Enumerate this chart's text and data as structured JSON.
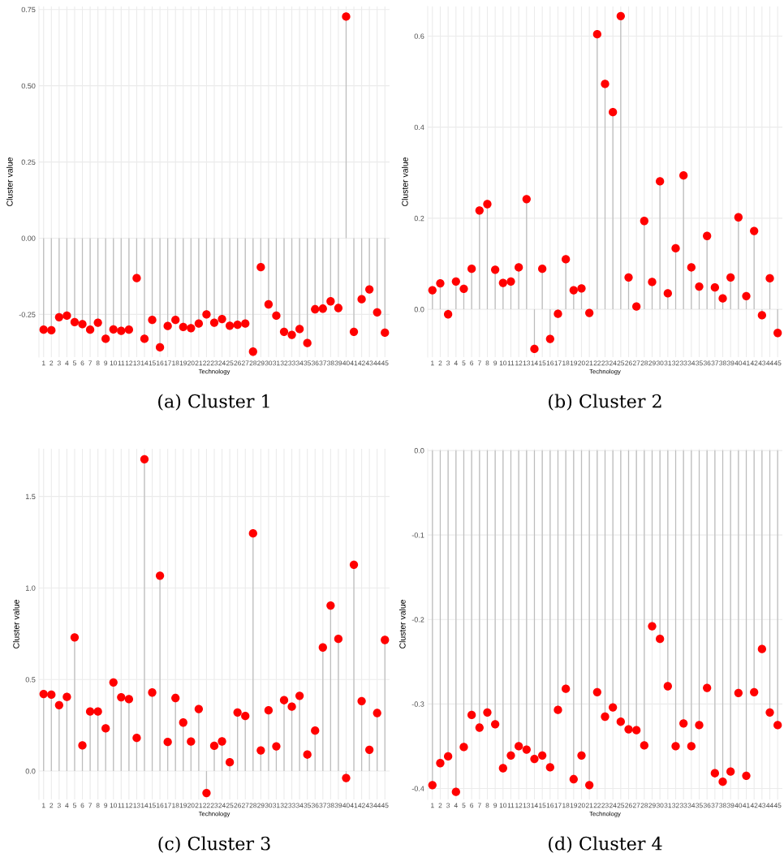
{
  "chart_data": [
    {
      "type": "lollipop",
      "xlabel": "Technology",
      "ylabel": "Cluster value",
      "annotations": [
        "(a) Cluster 1"
      ],
      "color": "#ff0000",
      "marker": "circle",
      "grid": true,
      "categories": [
        "1",
        "2",
        "3",
        "4",
        "5",
        "6",
        "7",
        "8",
        "9",
        "10",
        "11",
        "12",
        "13",
        "14",
        "15",
        "16",
        "17",
        "18",
        "19",
        "20",
        "21",
        "22",
        "23",
        "24",
        "25",
        "26",
        "27",
        "28",
        "29",
        "30",
        "31",
        "32",
        "33",
        "34",
        "35",
        "36",
        "37",
        "38",
        "39",
        "40",
        "41",
        "42",
        "43",
        "44",
        "45"
      ],
      "values": [
        -0.3,
        -0.302,
        -0.259,
        -0.254,
        -0.275,
        -0.282,
        -0.3,
        -0.277,
        -0.33,
        -0.299,
        -0.304,
        -0.3,
        -0.131,
        -0.33,
        -0.268,
        -0.358,
        -0.288,
        -0.268,
        -0.291,
        -0.295,
        -0.28,
        -0.25,
        -0.277,
        -0.265,
        -0.287,
        -0.284,
        -0.28,
        -0.372,
        -0.095,
        -0.217,
        -0.254,
        -0.307,
        -0.317,
        -0.298,
        -0.344,
        -0.233,
        -0.231,
        -0.207,
        -0.229,
        0.727,
        -0.307,
        -0.2,
        -0.168,
        -0.243,
        -0.31
      ],
      "ylim": [
        -0.39,
        0.76
      ],
      "yticks": [
        {
          "value": -0.25,
          "label": "-0.25"
        },
        {
          "value": 0,
          "label": "0.00"
        },
        {
          "value": 0.25,
          "label": "0.25"
        },
        {
          "value": 0.5,
          "label": "0.50"
        },
        {
          "value": 0.75,
          "label": "0.75"
        }
      ]
    },
    {
      "type": "lollipop",
      "xlabel": "Technology",
      "ylabel": "Cluster value",
      "annotations": [
        "(b) Cluster 2"
      ],
      "color": "#ff0000",
      "marker": "circle",
      "grid": true,
      "categories": [
        "1",
        "2",
        "3",
        "4",
        "5",
        "6",
        "7",
        "8",
        "9",
        "10",
        "11",
        "12",
        "13",
        "14",
        "15",
        "16",
        "17",
        "18",
        "19",
        "20",
        "21",
        "22",
        "23",
        "24",
        "25",
        "26",
        "27",
        "28",
        "29",
        "30",
        "31",
        "32",
        "33",
        "34",
        "35",
        "36",
        "37",
        "38",
        "39",
        "40",
        "41",
        "42",
        "43",
        "44",
        "45"
      ],
      "values": [
        0.042,
        0.057,
        -0.011,
        0.061,
        0.045,
        0.089,
        0.217,
        0.231,
        0.087,
        0.058,
        0.061,
        0.092,
        0.242,
        -0.087,
        0.089,
        -0.065,
        -0.01,
        0.11,
        0.042,
        0.046,
        -0.008,
        0.604,
        0.495,
        0.433,
        0.644,
        0.07,
        0.006,
        0.194,
        0.06,
        0.281,
        0.035,
        0.134,
        0.294,
        0.092,
        0.05,
        0.161,
        0.048,
        0.024,
        0.07,
        0.202,
        0.029,
        0.172,
        -0.013,
        0.068,
        -0.052
      ],
      "ylim": [
        -0.105,
        0.665
      ],
      "yticks": [
        {
          "value": 0,
          "label": "0.0"
        },
        0.2,
        0.4,
        0.6
      ]
    },
    {
      "type": "lollipop",
      "xlabel": "Technology",
      "ylabel": "Cluster value",
      "annotations": [
        "(c) Cluster 3"
      ],
      "color": "#ff0000",
      "marker": "circle",
      "grid": true,
      "categories": [
        "1",
        "2",
        "3",
        "4",
        "5",
        "6",
        "7",
        "8",
        "9",
        "10",
        "11",
        "12",
        "13",
        "14",
        "15",
        "16",
        "17",
        "18",
        "19",
        "20",
        "21",
        "22",
        "23",
        "24",
        "25",
        "26",
        "27",
        "28",
        "29",
        "30",
        "31",
        "32",
        "33",
        "34",
        "35",
        "36",
        "37",
        "38",
        "39",
        "40",
        "41",
        "42",
        "43",
        "44",
        "45"
      ],
      "values": [
        0.421,
        0.417,
        0.36,
        0.405,
        0.73,
        0.14,
        0.325,
        0.325,
        0.233,
        0.484,
        0.403,
        0.393,
        0.181,
        1.703,
        0.429,
        1.067,
        0.159,
        0.399,
        0.265,
        0.161,
        0.339,
        -0.12,
        0.138,
        0.162,
        0.048,
        0.32,
        0.301,
        1.298,
        0.113,
        0.332,
        0.135,
        0.387,
        0.352,
        0.411,
        0.09,
        0.221,
        0.675,
        0.904,
        0.722,
        -0.038,
        1.127,
        0.382,
        0.116,
        0.317,
        0.716
      ],
      "ylim": [
        -0.155,
        1.76
      ],
      "yticks": [
        {
          "value": 0,
          "label": "0.0"
        },
        0.5,
        {
          "value": 1,
          "label": "1.0"
        },
        1.5
      ]
    },
    {
      "type": "lollipop",
      "xlabel": "Technology",
      "ylabel": "Cluster value",
      "annotations": [
        "(d) Cluster 4"
      ],
      "color": "#ff0000",
      "marker": "circle",
      "grid": true,
      "categories": [
        "1",
        "2",
        "3",
        "4",
        "5",
        "6",
        "7",
        "8",
        "9",
        "10",
        "11",
        "12",
        "13",
        "14",
        "15",
        "16",
        "17",
        "18",
        "19",
        "20",
        "21",
        "22",
        "23",
        "24",
        "25",
        "26",
        "27",
        "28",
        "29",
        "30",
        "31",
        "32",
        "33",
        "34",
        "35",
        "36",
        "37",
        "38",
        "39",
        "40",
        "41",
        "42",
        "43",
        "44",
        "45"
      ],
      "values": [
        -0.396,
        -0.37,
        -0.362,
        -0.404,
        -0.351,
        -0.313,
        -0.328,
        -0.31,
        -0.324,
        -0.376,
        -0.361,
        -0.35,
        -0.354,
        -0.365,
        -0.361,
        -0.375,
        -0.307,
        -0.282,
        -0.389,
        -0.361,
        -0.396,
        -0.286,
        -0.315,
        -0.304,
        -0.321,
        -0.33,
        -0.331,
        -0.349,
        -0.208,
        -0.223,
        -0.279,
        -0.35,
        -0.323,
        -0.35,
        -0.325,
        -0.281,
        -0.382,
        -0.392,
        -0.38,
        -0.287,
        -0.385,
        -0.286,
        -0.235,
        -0.31,
        -0.325
      ],
      "ylim": [
        -0.413,
        0.002
      ],
      "yticks": [
        {
          "value": -0.4,
          "label": "-0.4"
        },
        {
          "value": -0.3,
          "label": "-0.3"
        },
        {
          "value": -0.2,
          "label": "-0.2"
        },
        {
          "value": -0.1,
          "label": "-0.1"
        },
        {
          "value": 0,
          "label": "0.0"
        }
      ]
    }
  ]
}
